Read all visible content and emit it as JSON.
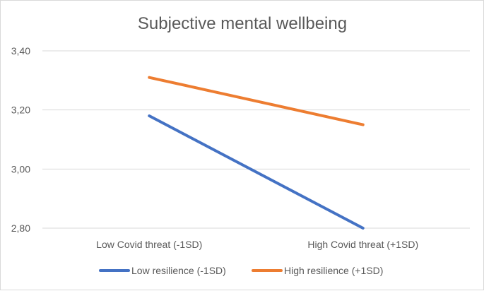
{
  "chart_data": {
    "type": "line",
    "title": "Subjective mental wellbeing",
    "categories": [
      "Low Covid threat (-1SD)",
      "High Covid threat (+1SD)"
    ],
    "y_ticks": [
      "3,40",
      "3,20",
      "3,00",
      "2,80"
    ],
    "y_tick_values": [
      3.4,
      3.2,
      3.0,
      2.8
    ],
    "ylim": [
      2.8,
      3.4
    ],
    "xlabel": "",
    "ylabel": "",
    "grid": true,
    "legend_position": "bottom",
    "series": [
      {
        "name": "Low resilience (-1SD)",
        "color": "#4472c4",
        "values": [
          3.18,
          2.8
        ]
      },
      {
        "name": "High resilience (+1SD)",
        "color": "#ed7d31",
        "values": [
          3.31,
          3.15
        ]
      }
    ]
  }
}
